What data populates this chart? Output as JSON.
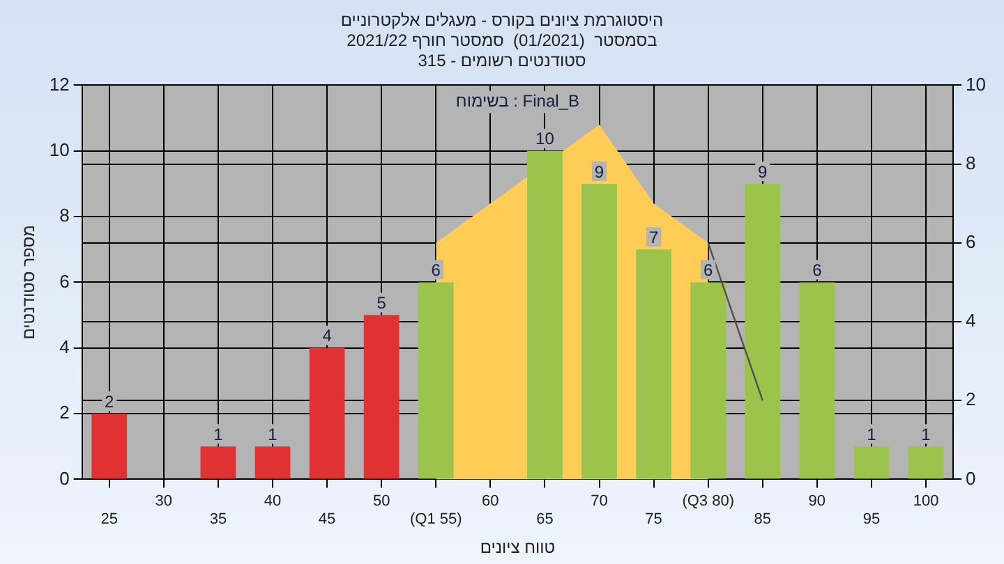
{
  "chart_data": {
    "type": "bar",
    "title": [
      "היסטוגרמת ציונים בקורס - מעגלים אלקטרוניים",
      "בסמסטר  (01/2021)  סמסטר חורף 2021/22",
      "סטודנטים רשומים - 315"
    ],
    "xlabel": "טווח ציונים",
    "ylabel": "מספר סטודנטים",
    "annotations": [
      "בשימוח : Final_B"
    ],
    "categories": [
      "25",
      "30",
      "35",
      "40",
      "45",
      "50",
      "(Q1 55)",
      "60",
      "65",
      "70",
      "75",
      "(Q3 80)",
      "85",
      "90",
      "95",
      "100"
    ],
    "series": [
      {
        "colors": [
          "#e03232",
          "#e03232",
          "#e03232",
          "#e03232",
          "#e03232",
          "#e03232",
          "#9cc44c",
          "#9cc44c",
          "#9cc44c",
          "#9cc44c",
          "#9cc44c",
          "#9cc44c",
          "#9cc44c",
          "#9cc44c",
          "#9cc44c",
          "#9cc44c"
        ],
        "values": [
          2,
          0,
          1,
          1,
          4,
          5,
          6,
          0,
          10,
          9,
          7,
          6,
          9,
          6,
          1,
          1
        ],
        "value_labels": [
          "2",
          null,
          "1",
          "1",
          "4",
          "5",
          "6",
          null,
          "10",
          "9",
          "7",
          "6",
          "9",
          "6",
          "1",
          "1"
        ]
      },
      {
        "type": "area",
        "axis": "y2",
        "color": "#ffcc55",
        "values": [
          null,
          null,
          null,
          null,
          null,
          null,
          6,
          7,
          null,
          9,
          7,
          6,
          null,
          null,
          null,
          null
        ]
      },
      {
        "type": "line",
        "axis": "y2",
        "color": "#505050",
        "values": [
          null,
          null,
          null,
          null,
          null,
          null,
          null,
          null,
          null,
          null,
          null,
          6,
          2,
          null,
          null,
          null
        ]
      }
    ],
    "ylim": [
      0,
      12
    ],
    "yticks": [
      0,
      2,
      4,
      6,
      8,
      10,
      12
    ],
    "y2lim": [
      0,
      10
    ],
    "y2ticks": [
      0,
      2,
      4,
      6,
      8,
      10
    ],
    "grid": true,
    "legend": false
  }
}
